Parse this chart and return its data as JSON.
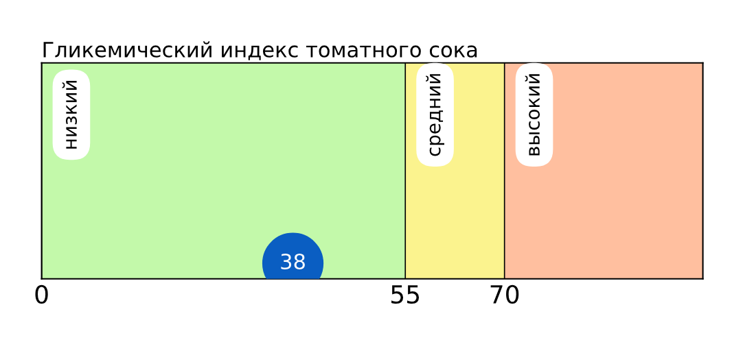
{
  "chart_data": {
    "type": "scatter",
    "title": "Гликемический индекс томатного сока",
    "orientation": "horizontal",
    "categories": [
      null
    ],
    "xlim": [
      0,
      100
    ],
    "xticks": [
      0,
      55,
      70
    ],
    "series": [
      {
        "color": "#0a5ec2",
        "values": [
          38
        ]
      }
    ],
    "data_labels": true,
    "marker": "circle",
    "bands": [
      {
        "axis": "x",
        "from": 0,
        "to": 55,
        "label": "низкий",
        "color": "#c3f9aa"
      },
      {
        "axis": "x",
        "from": 55,
        "to": 70,
        "label": "средний",
        "color": "#fbf38e"
      },
      {
        "axis": "x",
        "from": 70,
        "to": 100,
        "label": "высокий",
        "color": "#ffbf9f"
      }
    ]
  }
}
